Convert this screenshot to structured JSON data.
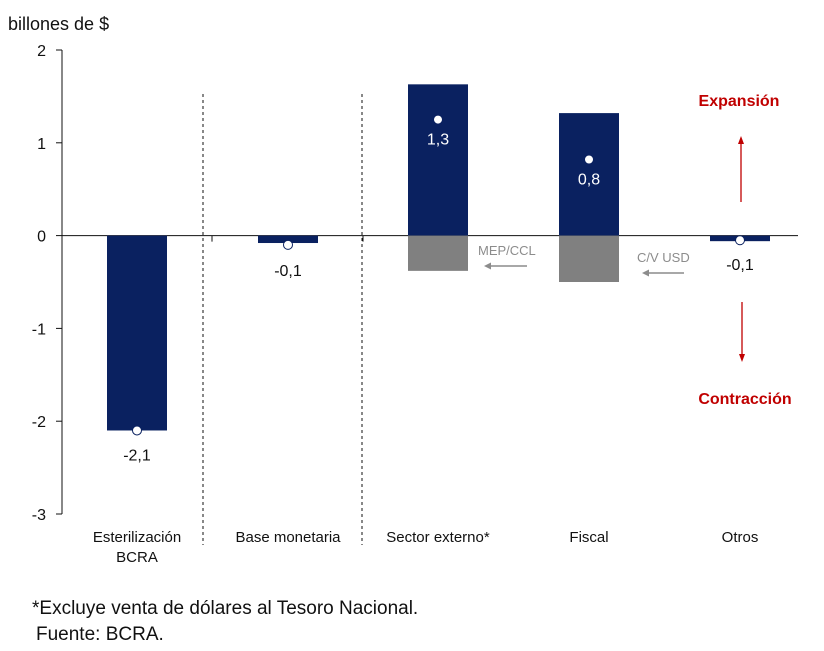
{
  "chart_data": {
    "type": "bar",
    "ylabel": "billones de $",
    "ylim": [
      -3,
      2
    ],
    "yticks": [
      2,
      1,
      0,
      -1,
      -2,
      -3
    ],
    "categories": [
      "Esterilización\nBCRA",
      "Base monetaria",
      "Sector externo*",
      "Fiscal",
      "Otros"
    ],
    "series": [
      {
        "role": "main",
        "color": "#0a2160",
        "values": [
          -2.1,
          -0.08,
          1.63,
          1.32,
          -0.06
        ]
      },
      {
        "role": "secondary",
        "color": "#808080",
        "values": [
          0,
          0,
          -0.38,
          -0.5,
          0
        ]
      }
    ],
    "net_points": [
      -2.1,
      -0.1,
      1.25,
      0.82,
      -0.05
    ],
    "data_labels": [
      "-2,1",
      "-0,1",
      "1,3",
      "0,8",
      "-0,1"
    ],
    "annotations": {
      "mep_ccl": "MEP/CCL",
      "cv_usd": "C/V USD",
      "expansion": "Expansión",
      "contraction": "Contracción",
      "direction_color": "#c00000",
      "arrow_color": "#8c8c8c"
    },
    "separators_after_categories": [
      0,
      1
    ]
  },
  "notes": {
    "footnote": "*Excluye venta de dólares al Tesoro Nacional.",
    "source": "Fuente: BCRA."
  }
}
